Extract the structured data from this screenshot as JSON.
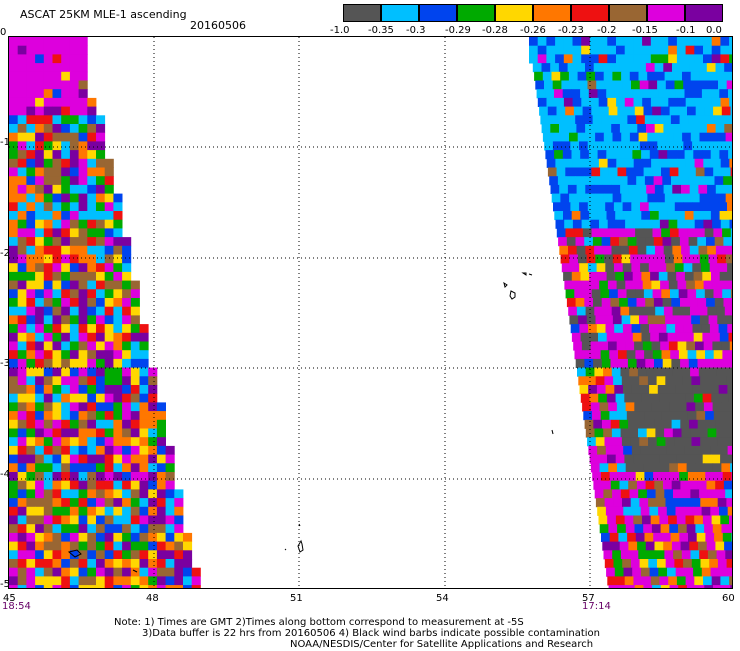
{
  "header": {
    "title": "ASCAT 25KM MLE-1 ascending",
    "date": "20160506"
  },
  "colorbar": {
    "colors": [
      "#555555",
      "#00bfff",
      "#0044ee",
      "#00aa00",
      "#ffd700",
      "#ff7700",
      "#ee1111",
      "#996633",
      "#dd00dd",
      "#7a00a0"
    ],
    "labels": [
      "-1.0",
      "-0.35",
      "-0.3",
      "-0.29",
      "-0.28",
      "-0.26",
      "-0.23",
      "-0.2",
      "-0.15",
      "-0.1",
      "0.0"
    ]
  },
  "map": {
    "y_ticks": [
      "0",
      "-1",
      "-2",
      "-3",
      "-4",
      "-5"
    ],
    "x_ticks": [
      "45",
      "48",
      "51",
      "54",
      "57",
      "60"
    ],
    "left_time": "18:54",
    "right_time": "17:14"
  },
  "footer": {
    "line1": "Note: 1) Times are GMT 2)Times along bottom correspond to measurement at -5S",
    "line2": "3)Data buffer is 22 hrs from 20160506 4) Black wind barbs indicate possible contamination",
    "line3": "NOAA/NESDIS/Center for Satellite Applications and Research"
  }
}
